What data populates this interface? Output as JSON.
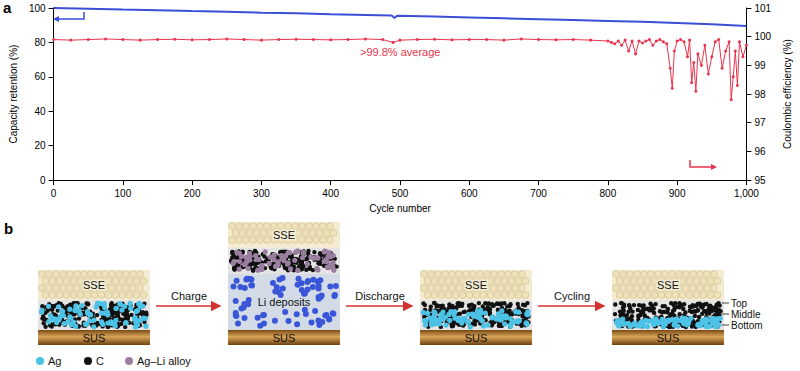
{
  "chart_data": {
    "type": "line",
    "panel": "a",
    "xlabel": "Cycle number",
    "ylabel": "Capacity retention (%)",
    "y2label": "Coulombic efficiency (%)",
    "xlim": [
      0,
      1000
    ],
    "xticks": [
      0,
      100,
      200,
      300,
      400,
      500,
      600,
      700,
      800,
      900,
      {
        "value": 1000,
        "label": "1,000"
      }
    ],
    "ylim": [
      0,
      100
    ],
    "yticks": [
      0,
      20,
      40,
      60,
      80,
      100
    ],
    "y2lim": [
      95,
      101
    ],
    "y2ticks": [
      95,
      96,
      97,
      98,
      99,
      100,
      101
    ],
    "grid": false,
    "series": [
      {
        "color": "#3a4fd8",
        "axis": "y",
        "marker": "none",
        "line_style": "solid",
        "x": [
          0,
          50,
          100,
          150,
          200,
          250,
          300,
          350,
          400,
          450,
          488,
          492,
          496,
          550,
          600,
          650,
          700,
          750,
          800,
          850,
          900,
          950,
          1000
        ],
        "values": [
          100,
          99.6,
          99.1,
          98.7,
          98.2,
          97.8,
          97.3,
          96.9,
          96.4,
          96.0,
          95.6,
          94.2,
          95.5,
          95.0,
          94.5,
          94.0,
          93.5,
          93.0,
          92.5,
          92.0,
          91.3,
          90.5,
          89.6
        ]
      },
      {
        "color": "#e8344e",
        "axis": "y2",
        "marker": "circle",
        "line_style": "solid",
        "x": [
          0,
          25,
          50,
          75,
          100,
          125,
          150,
          175,
          200,
          225,
          250,
          275,
          300,
          325,
          350,
          375,
          400,
          425,
          450,
          475,
          490,
          500,
          525,
          550,
          575,
          600,
          625,
          650,
          675,
          700,
          725,
          750,
          775,
          800,
          805,
          810,
          815,
          820,
          825,
          830,
          835,
          840,
          845,
          850,
          855,
          860,
          865,
          870,
          875,
          880,
          885,
          890,
          893,
          896,
          900,
          905,
          910,
          915,
          918,
          921,
          924,
          927,
          930,
          935,
          940,
          945,
          950,
          955,
          960,
          965,
          970,
          975,
          978,
          981,
          984,
          987,
          990,
          995,
          1000
        ],
        "values": [
          99.9,
          99.88,
          99.9,
          99.92,
          99.9,
          99.88,
          99.9,
          99.91,
          99.89,
          99.9,
          99.92,
          99.9,
          99.88,
          99.9,
          99.91,
          99.9,
          99.89,
          99.9,
          99.92,
          99.9,
          99.8,
          99.88,
          99.9,
          99.91,
          99.89,
          99.9,
          99.9,
          99.88,
          99.92,
          99.9,
          99.89,
          99.9,
          99.88,
          99.85,
          99.8,
          99.75,
          99.85,
          99.7,
          99.88,
          99.5,
          99.85,
          99.4,
          99.85,
          99.78,
          99.85,
          99.9,
          99.7,
          99.85,
          99.9,
          99.82,
          99.75,
          98.9,
          98.2,
          99.5,
          99.85,
          99.9,
          99.82,
          99.3,
          99.88,
          98.4,
          99.1,
          98.1,
          99.4,
          99.0,
          99.7,
          98.7,
          99.3,
          99.82,
          99.9,
          98.9,
          99.5,
          99.82,
          97.8,
          98.6,
          99.5,
          98.3,
          99.82,
          99.3,
          99.7
        ]
      }
    ],
    "annotations": [
      {
        "text": ">99.8% average",
        "color": "#e8344e"
      }
    ]
  },
  "diagram": {
    "panel": "b",
    "stages": [
      {
        "top": "SSE",
        "bottom": "SUS"
      },
      {
        "top": "SSE",
        "middle": "Li deposits",
        "bottom": "SUS"
      },
      {
        "top": "SSE",
        "bottom": "SUS"
      },
      {
        "top": "SSE",
        "bottom": "SUS",
        "layers": [
          "Top",
          "Middle",
          "Bottom"
        ]
      }
    ],
    "arrows": [
      "Charge",
      "Discharge",
      "Cycling"
    ],
    "legend": [
      {
        "name": "Ag",
        "color": "#4cc3e6"
      },
      {
        "name": "C",
        "color": "#111111"
      },
      {
        "name": "Ag–Li alloy",
        "color": "#9b7fa0"
      }
    ]
  }
}
